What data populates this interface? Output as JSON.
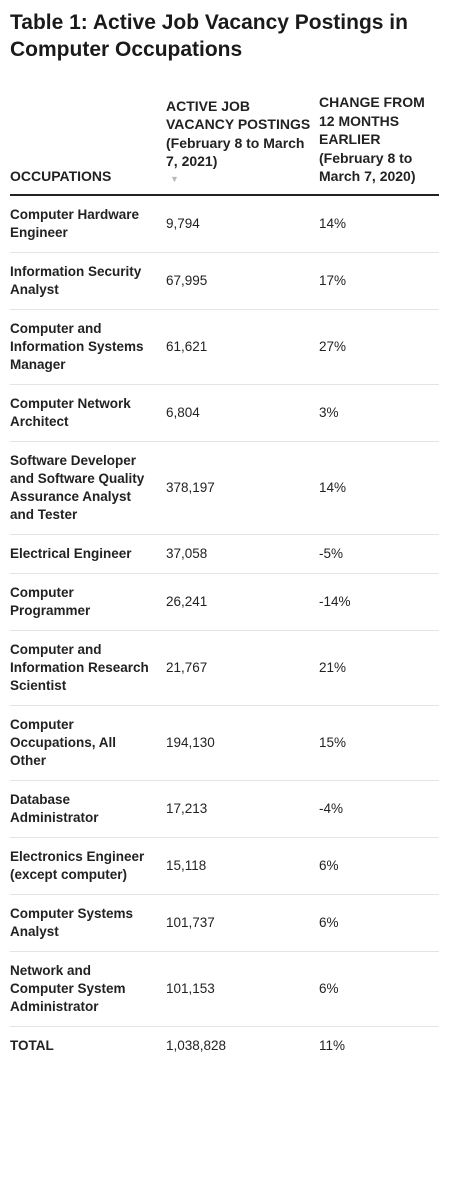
{
  "title": "Table 1: Active Job Vacancy Postings in Computer Occupations",
  "headers": {
    "occupations": "OCCUPATIONS",
    "postings": "ACTIVE JOB VACANCY POSTINGS (February 8 to March 7, 2021)",
    "change": "CHANGE FROM 12 MONTHS EARLIER (February 8 to March 7, 2020)",
    "sort_indicator": "▼"
  },
  "rows": [
    {
      "occupation": "Computer Hardware Engineer",
      "postings": "9,794",
      "change": "14%"
    },
    {
      "occupation": "Information Security Analyst",
      "postings": "67,995",
      "change": "17%"
    },
    {
      "occupation": "Computer and Information Systems Manager",
      "postings": "61,621",
      "change": "27%"
    },
    {
      "occupation": "Computer Network Architect",
      "postings": "6,804",
      "change": "3%"
    },
    {
      "occupation": "Software Developer and Software Quality Assurance Analyst and Tester",
      "postings": "378,197",
      "change": "14%"
    },
    {
      "occupation": "Electrical Engineer",
      "postings": "37,058",
      "change": "-5%"
    },
    {
      "occupation": "Computer Programmer",
      "postings": "26,241",
      "change": "-14%"
    },
    {
      "occupation": "Computer and Information Research Scientist",
      "postings": "21,767",
      "change": "21%"
    },
    {
      "occupation": "Computer Occupations, All Other",
      "postings": "194,130",
      "change": "15%"
    },
    {
      "occupation": "Database Administrator",
      "postings": "17,213",
      "change": "-4%"
    },
    {
      "occupation": "Electronics Engineer (except computer)",
      "postings": "15,118",
      "change": "6%"
    },
    {
      "occupation": "Computer Systems Analyst",
      "postings": "101,737",
      "change": "6%"
    },
    {
      "occupation": "Network and Computer System Administrator",
      "postings": "101,153",
      "change": "6%"
    }
  ],
  "total": {
    "label": "TOTAL",
    "postings": "1,038,828",
    "change": "11%"
  }
}
